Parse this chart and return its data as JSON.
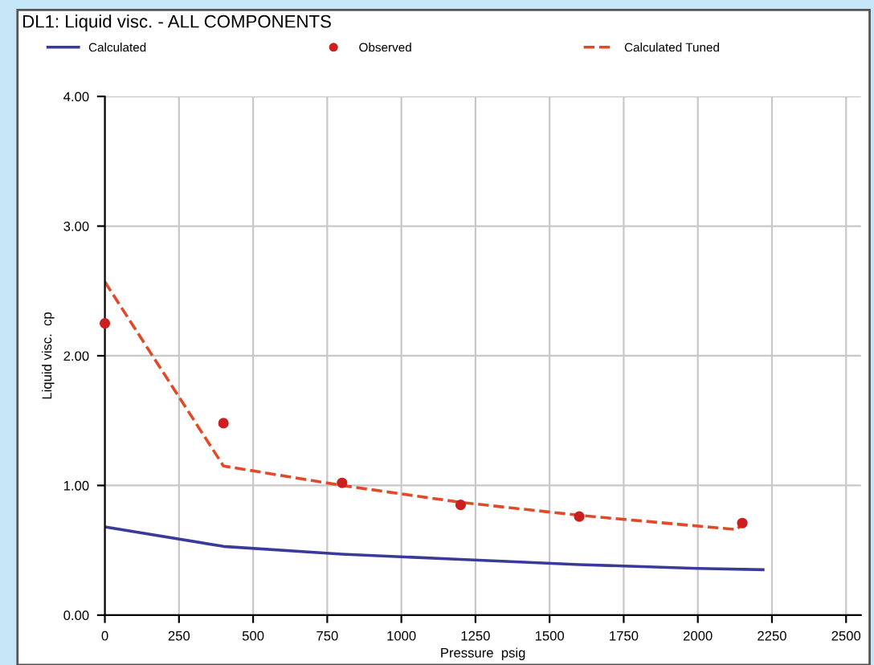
{
  "chart_data": {
    "type": "line",
    "title": "DL1: Liquid visc. - ALL COMPONENTS",
    "xlabel": "Pressure  psig",
    "ylabel": "Liquid visc.  cp",
    "series": [
      {
        "name": "Calculated",
        "color": "#3a3a9a",
        "line_style": "solid",
        "marker": "none",
        "x": [
          0,
          400,
          800,
          1200,
          1600,
          2000,
          2220
        ],
        "values": [
          0.68,
          0.53,
          0.47,
          0.43,
          0.39,
          0.36,
          0.35
        ]
      },
      {
        "name": "Observed",
        "type": "scatter",
        "color": "#cc2020",
        "marker": "circle",
        "x": [
          0,
          400,
          800,
          1200,
          1600,
          2150
        ],
        "values": [
          2.25,
          1.48,
          1.02,
          0.85,
          0.76,
          0.71
        ]
      },
      {
        "name": "Calculated Tuned",
        "color": "#e04a2a",
        "line_style": "dashed",
        "marker": "none",
        "x": [
          0,
          400,
          800,
          1200,
          1600,
          2130,
          2150
        ],
        "values": [
          2.57,
          1.15,
          1.0,
          0.87,
          0.77,
          0.66,
          0.7
        ]
      }
    ],
    "xlim": [
      0,
      2550
    ],
    "xticks": [
      0,
      250,
      500,
      750,
      1000,
      1250,
      1500,
      1750,
      2000,
      2250,
      2500
    ],
    "ylim": [
      0,
      4
    ],
    "yticks": [
      {
        "value": 0,
        "label": "0.00"
      },
      {
        "value": 1,
        "label": "1.00"
      },
      {
        "value": 2,
        "label": "2.00"
      },
      {
        "value": 3,
        "label": "3.00"
      },
      {
        "value": 4,
        "label": "4.00"
      }
    ],
    "grid": true,
    "legend": "top"
  }
}
